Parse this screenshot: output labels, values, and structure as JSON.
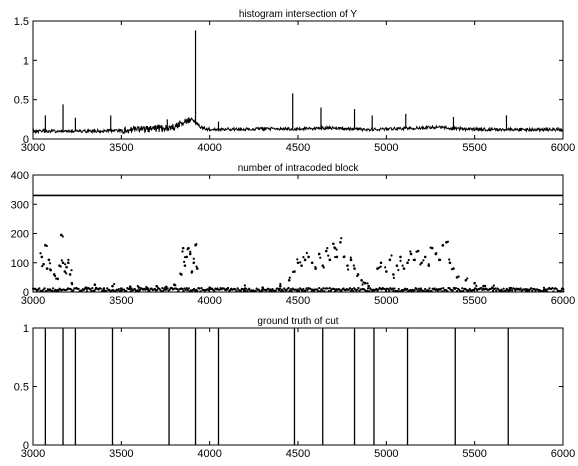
{
  "chart_data": [
    {
      "type": "line",
      "title": "histogram intersection of Y",
      "xlabel": "",
      "ylabel": "",
      "xlim": [
        3000,
        6000
      ],
      "ylim": [
        0,
        1.5
      ],
      "x_ticks": [
        3000,
        3500,
        4000,
        4500,
        5000,
        5500,
        6000
      ],
      "y_ticks": [
        0,
        0.5,
        1,
        1.5
      ],
      "y_tick_labels": [
        "0",
        "0.5",
        "1",
        "1.5"
      ],
      "grid": false,
      "series": [
        {
          "baseline": [
            [
              3000,
              0.1
            ],
            [
              3300,
              0.1
            ],
            [
              3500,
              0.11
            ],
            [
              3700,
              0.13
            ],
            [
              3800,
              0.15
            ],
            [
              3850,
              0.22
            ],
            [
              3900,
              0.25
            ],
            [
              3950,
              0.15
            ],
            [
              4000,
              0.12
            ],
            [
              4300,
              0.13
            ],
            [
              4500,
              0.13
            ],
            [
              4700,
              0.14
            ],
            [
              4900,
              0.12
            ],
            [
              5000,
              0.13
            ],
            [
              5200,
              0.14
            ],
            [
              5300,
              0.15
            ],
            [
              5400,
              0.13
            ],
            [
              5600,
              0.12
            ],
            [
              5800,
              0.12
            ],
            [
              6000,
              0.12
            ]
          ],
          "spikes": [
            [
              3070,
              0.3
            ],
            [
              3170,
              0.44
            ],
            [
              3240,
              0.27
            ],
            [
              3440,
              0.3
            ],
            [
              3760,
              0.25
            ],
            [
              3920,
              1.38
            ],
            [
              4050,
              0.22
            ],
            [
              4470,
              0.58
            ],
            [
              4630,
              0.4
            ],
            [
              4820,
              0.38
            ],
            [
              4920,
              0.3
            ],
            [
              5110,
              0.32
            ],
            [
              5380,
              0.28
            ],
            [
              5680,
              0.3
            ]
          ]
        }
      ]
    },
    {
      "type": "scatter",
      "title": "number of intracoded block",
      "xlabel": "",
      "ylabel": "",
      "xlim": [
        3000,
        6000
      ],
      "ylim": [
        0,
        400
      ],
      "x_ticks": [
        3000,
        3500,
        4000,
        4500,
        5000,
        5500,
        6000
      ],
      "y_ticks": [
        0,
        100,
        200,
        300,
        400
      ],
      "y_tick_labels": [
        "0",
        "100",
        "200",
        "300",
        "400"
      ],
      "grid": false,
      "series": [
        {
          "constant_line": 330,
          "points": [
            [
              3050,
              120
            ],
            [
              3060,
              95
            ],
            [
              3070,
              160
            ],
            [
              3080,
              80
            ],
            [
              3090,
              110
            ],
            [
              3100,
              75
            ],
            [
              3120,
              60
            ],
            [
              3140,
              45
            ],
            [
              3150,
              90
            ],
            [
              3160,
              195
            ],
            [
              3170,
              100
            ],
            [
              3180,
              70
            ],
            [
              3190,
              85
            ],
            [
              3200,
              100
            ],
            [
              3210,
              60
            ],
            [
              3220,
              30
            ],
            [
              3300,
              15
            ],
            [
              3350,
              25
            ],
            [
              3400,
              10
            ],
            [
              3450,
              20
            ],
            [
              3500,
              12
            ],
            [
              3550,
              18
            ],
            [
              3600,
              15
            ],
            [
              3650,
              10
            ],
            [
              3700,
              20
            ],
            [
              3750,
              15
            ],
            [
              3800,
              25
            ],
            [
              3840,
              60
            ],
            [
              3850,
              150
            ],
            [
              3860,
              90
            ],
            [
              3870,
              120
            ],
            [
              3880,
              150
            ],
            [
              3890,
              130
            ],
            [
              3900,
              70
            ],
            [
              3910,
              100
            ],
            [
              3920,
              160
            ],
            [
              3930,
              80
            ],
            [
              4000,
              15
            ],
            [
              4100,
              10
            ],
            [
              4200,
              12
            ],
            [
              4300,
              15
            ],
            [
              4400,
              20
            ],
            [
              4450,
              40
            ],
            [
              4480,
              70
            ],
            [
              4500,
              100
            ],
            [
              4520,
              90
            ],
            [
              4540,
              110
            ],
            [
              4560,
              120
            ],
            [
              4580,
              100
            ],
            [
              4600,
              80
            ],
            [
              4620,
              130
            ],
            [
              4640,
              90
            ],
            [
              4660,
              140
            ],
            [
              4680,
              110
            ],
            [
              4700,
              165
            ],
            [
              4710,
              150
            ],
            [
              4720,
              120
            ],
            [
              4740,
              170
            ],
            [
              4760,
              120
            ],
            [
              4780,
              90
            ],
            [
              4800,
              110
            ],
            [
              4820,
              80
            ],
            [
              4840,
              60
            ],
            [
              4860,
              40
            ],
            [
              4880,
              30
            ],
            [
              4900,
              20
            ],
            [
              4950,
              80
            ],
            [
              4970,
              100
            ],
            [
              5000,
              70
            ],
            [
              5020,
              110
            ],
            [
              5040,
              60
            ],
            [
              5060,
              90
            ],
            [
              5080,
              120
            ],
            [
              5100,
              80
            ],
            [
              5120,
              100
            ],
            [
              5140,
              130
            ],
            [
              5160,
              110
            ],
            [
              5180,
              140
            ],
            [
              5200,
              100
            ],
            [
              5220,
              120
            ],
            [
              5240,
              90
            ],
            [
              5260,
              150
            ],
            [
              5280,
              130
            ],
            [
              5300,
              110
            ],
            [
              5320,
              160
            ],
            [
              5340,
              170
            ],
            [
              5360,
              100
            ],
            [
              5380,
              80
            ],
            [
              5400,
              50
            ],
            [
              5450,
              40
            ],
            [
              5500,
              30
            ],
            [
              5550,
              20
            ],
            [
              5600,
              15
            ],
            [
              5700,
              10
            ],
            [
              5800,
              8
            ],
            [
              5900,
              8
            ],
            [
              6000,
              10
            ]
          ]
        }
      ]
    },
    {
      "type": "bar",
      "title": "ground truth of cut",
      "xlabel": "",
      "ylabel": "",
      "xlim": [
        3000,
        6000
      ],
      "ylim": [
        0,
        1
      ],
      "x_ticks": [
        3000,
        3500,
        4000,
        4500,
        5000,
        5500,
        6000
      ],
      "y_ticks": [
        0,
        0.5,
        1
      ],
      "y_tick_labels": [
        "0",
        "0.5",
        "1"
      ],
      "grid": false,
      "series": [
        {
          "cuts": [
            3070,
            3170,
            3240,
            3450,
            3770,
            3920,
            4050,
            4480,
            4640,
            4820,
            4930,
            5120,
            5390,
            5690
          ],
          "value": 1
        }
      ]
    }
  ]
}
